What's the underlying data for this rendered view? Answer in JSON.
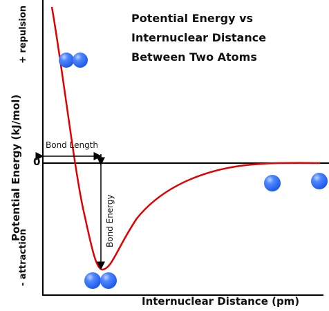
{
  "diagram": {
    "title_lines": [
      "Potential Energy vs",
      "Internuclear Distance",
      "Between Two Atoms"
    ],
    "x_axis_label": "Internuclear Distance (pm)",
    "y_axis_label": "Potential Energy (kJ/mol)",
    "y_positive_label": "+ repulsion",
    "y_negative_label": "- attraction",
    "zero_label": "0",
    "bond_length_label": "Bond Length",
    "bond_energy_label": "Bond Energy",
    "colors": {
      "curve": "#e00000",
      "atom": "#1e5ae8",
      "atom_highlight": "#b9d3ff",
      "axis": "#000000"
    }
  }
}
